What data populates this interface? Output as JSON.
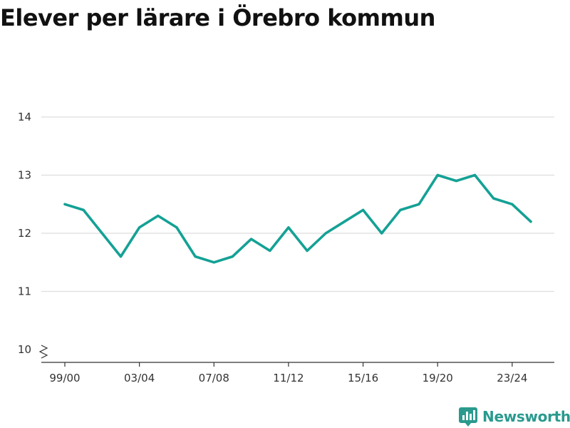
{
  "title": "Elever per lärare i Örebro kommun",
  "brand": {
    "name": "Newsworthy",
    "icon": "newsworthy-logo-icon",
    "color": "#2a9a8e"
  },
  "colors": {
    "line": "#14a195",
    "grid": "#dddddd",
    "axis": "#333333",
    "text": "#333333"
  },
  "chart_data": {
    "type": "line",
    "title": "Elever per lärare i Örebro kommun",
    "xlabel": "",
    "ylabel": "",
    "x": [
      "99/00",
      "00/01",
      "01/02",
      "02/03",
      "03/04",
      "04/05",
      "05/06",
      "06/07",
      "07/08",
      "08/09",
      "09/10",
      "10/11",
      "11/12",
      "12/13",
      "13/14",
      "14/15",
      "15/16",
      "16/17",
      "17/18",
      "18/19",
      "19/20",
      "20/21",
      "21/22",
      "22/23",
      "23/24",
      "24/25"
    ],
    "x_tick_labels": [
      "99/00",
      "03/04",
      "07/08",
      "11/12",
      "15/16",
      "19/20",
      "23/24"
    ],
    "y_ticks": [
      10,
      11,
      12,
      13,
      14
    ],
    "ylim": [
      10,
      14.5
    ],
    "y_axis_break": true,
    "grid": true,
    "series": [
      {
        "values": [
          12.5,
          12.4,
          12.0,
          11.6,
          12.1,
          12.3,
          12.1,
          11.6,
          11.5,
          11.6,
          11.9,
          11.7,
          12.1,
          11.7,
          12.0,
          12.2,
          12.4,
          12.0,
          12.4,
          12.5,
          13.0,
          12.9,
          13.0,
          12.6,
          12.5,
          12.2
        ]
      }
    ]
  }
}
